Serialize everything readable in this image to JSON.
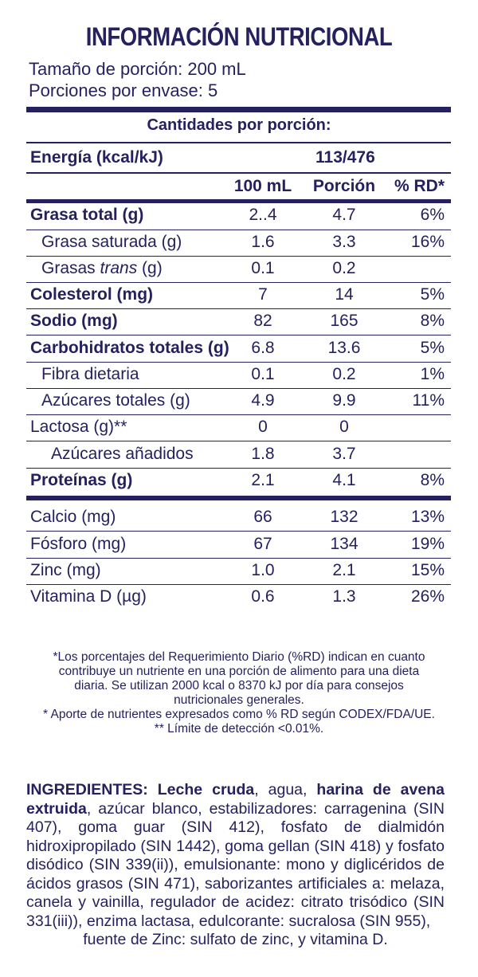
{
  "title": "INFORMACIÓN NUTRICIONAL",
  "serving_size": "Tamaño de porción: 200 mL",
  "servings_per_container": "Porciones por envase: 5",
  "amounts_header": "Cantidades por porción:",
  "energy": {
    "label": "Energía (kcal/kJ)",
    "value": "113/476"
  },
  "columns": {
    "per100": "100 mL",
    "portion": "Porción",
    "rd": "% RD*"
  },
  "rows": [
    {
      "label": "Grasa total (g)",
      "per100": "2..4",
      "portion": "4.7",
      "rd": "6%"
    },
    {
      "label": "Grasa saturada (g)",
      "per100": "1.6",
      "portion": "3.3",
      "rd": "16%"
    },
    {
      "label_pre": "Grasas ",
      "label_italic": "trans",
      "label_post": " (g)",
      "per100": "0.1",
      "portion": "0.2",
      "rd": ""
    },
    {
      "label": "Colesterol (mg)",
      "per100": "7",
      "portion": "14",
      "rd": "5%"
    },
    {
      "label": "Sodio (mg)",
      "per100": "82",
      "portion": "165",
      "rd": "8%"
    },
    {
      "label": "Carbohidratos totales (g)",
      "per100": "6.8",
      "portion": "13.6",
      "rd": "5%"
    },
    {
      "label": "Fibra dietaria",
      "per100": "0.1",
      "portion": "0.2",
      "rd": "1%"
    },
    {
      "label": "Azúcares totales (g)",
      "per100": "4.9",
      "portion": "9.9",
      "rd": "11%"
    },
    {
      "label": "Lactosa (g)**",
      "per100": "0",
      "portion": "0",
      "rd": ""
    },
    {
      "label": "Azúcares añadidos",
      "per100": "1.8",
      "portion": "3.7",
      "rd": ""
    },
    {
      "label": "Proteínas (g)",
      "per100": "2.1",
      "portion": "4.1",
      "rd": "8%"
    },
    {
      "label": "Calcio (mg)",
      "per100": "66",
      "portion": "132",
      "rd": "13%"
    },
    {
      "label": "Fósforo (mg)",
      "per100": "67",
      "portion": "134",
      "rd": "19%"
    },
    {
      "label": "Zinc (mg)",
      "per100": "1.0",
      "portion": "2.1",
      "rd": "15%"
    },
    {
      "label": "Vitamina D (µg)",
      "per100": "0.6",
      "portion": "1.3",
      "rd": "26%"
    }
  ],
  "notes": {
    "line1": "*Los porcentajes del Requerimiento Diario (%RD) indican en cuanto",
    "line2": "contribuye un nutriente en una porción de alimento para una dieta",
    "line3": "diaria. Se utilizan 2000 kcal o 8370 kJ por día para consejos",
    "line4": "nutricionales generales.",
    "line5": "* Aporte de nutrientes expresados como % RD según CODEX/FDA/UE.",
    "line6": "** Límite de detección <0.01%."
  },
  "ingredients": {
    "label": "INGREDIENTES:",
    "part1_bold": "Leche cruda",
    "part2": ", agua, ",
    "part3_bold": "harina de avena extruida",
    "part4": ", azúcar blanco, estabilizadores: carragenina (SIN 407), goma guar (SIN 412), fosfato de dialmidón hidroxipropilado (SIN 1442), goma gellan (SIN 418) y fosfato disódico (SIN 339(ii)), emulsionante: mono y diglicéridos de ácidos grasos (SIN 471), saborizantes artificiales a: melaza, canela y vainilla, regulador de acidez: citrato trisódico (SIN 331(iii)), enzima lactasa, edulcorante: sucralosa (SIN 955),",
    "part5": "fuente de Zinc: sulfato de zinc, y vitamina D."
  },
  "colors": {
    "text": "#25215e",
    "background": "#ffffff"
  }
}
